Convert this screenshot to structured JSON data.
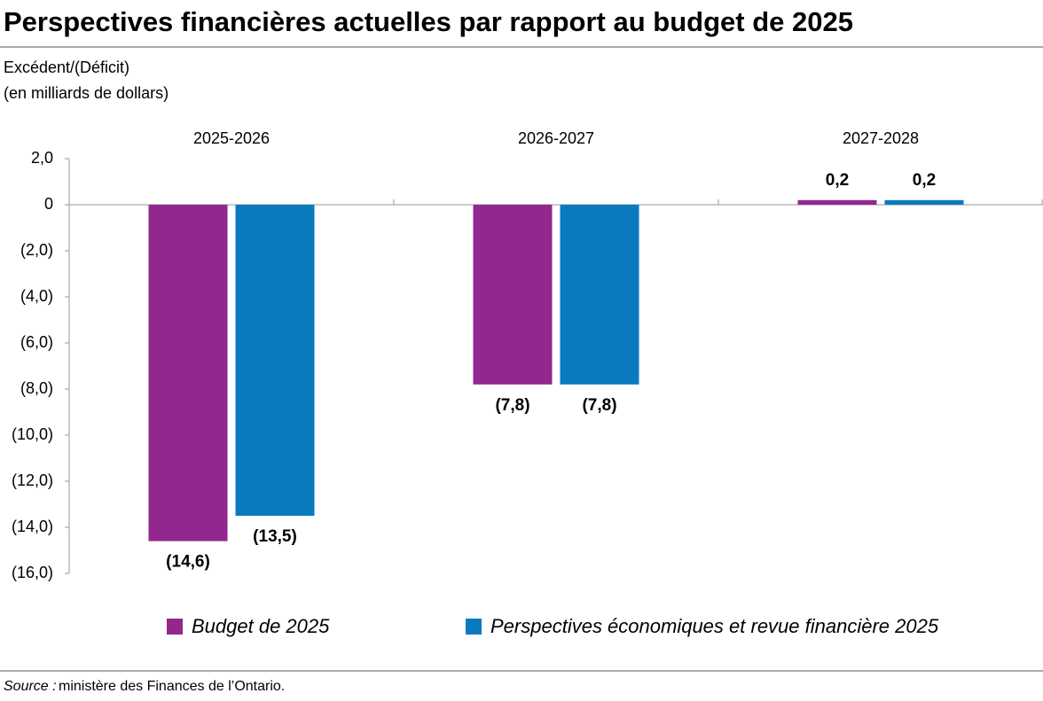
{
  "chart_data": {
    "type": "bar",
    "title": "Perspectives financières actuelles par rapport au budget de 2025",
    "y_label": [
      "Excédent/(Déficit)",
      "(en milliards de dollars)"
    ],
    "categories": [
      "2025-2026",
      "2026-2027",
      "2027-2028"
    ],
    "series": [
      {
        "name": "Budget de 2025",
        "color": "#92278f",
        "values": [
          -14.6,
          -7.8,
          0.2
        ],
        "value_labels": [
          "(14,6)",
          "(7,8)",
          "0,2"
        ]
      },
      {
        "name": "Perspectives économiques et revue financière 2025",
        "color": "#0a7abf",
        "values": [
          -13.5,
          -7.8,
          0.2
        ],
        "value_labels": [
          "(13,5)",
          "(7,8)",
          "0,2"
        ]
      }
    ],
    "ylim": [
      -16,
      2
    ],
    "yticks": [
      {
        "value": 2,
        "label": "2,0"
      },
      0,
      {
        "value": -2,
        "label": "(2,0)"
      },
      {
        "value": -4,
        "label": "(4,0)"
      },
      {
        "value": -6,
        "label": "(6,0)"
      },
      {
        "value": -8,
        "label": "(8,0)"
      },
      {
        "value": -10,
        "label": "(10,0)"
      },
      {
        "value": -12,
        "label": "(12,0)"
      },
      {
        "value": -14,
        "label": "(14,0)"
      },
      {
        "value": -16,
        "label": "(16,0)"
      }
    ],
    "source_label": "Source :",
    "source": "ministère des Finances de l’Ontario.",
    "legend": "bottom"
  }
}
